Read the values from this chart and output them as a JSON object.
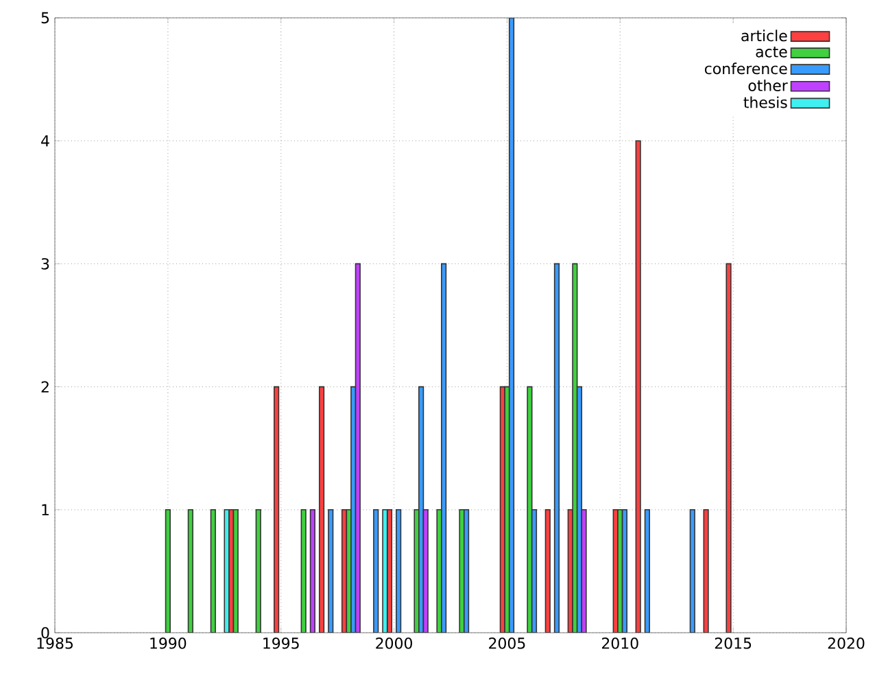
{
  "chart_data": {
    "type": "bar",
    "series": [
      {
        "name": "article",
        "color": "#ff4040",
        "x": [
          1993,
          1995,
          1997,
          1998,
          2000,
          2005,
          2007,
          2008,
          2010,
          2011,
          2014,
          2015
        ],
        "values": [
          1,
          2,
          2,
          1,
          1,
          2,
          1,
          1,
          1,
          4,
          1,
          3
        ]
      },
      {
        "name": "acte",
        "color": "#40d040",
        "x": [
          1990,
          1991,
          1992,
          1993,
          1994,
          1996,
          1998,
          2001,
          2002,
          2003,
          2005,
          2006,
          2008,
          2010
        ],
        "values": [
          1,
          1,
          1,
          1,
          1,
          1,
          1,
          1,
          1,
          1,
          2,
          2,
          3,
          1
        ]
      },
      {
        "name": "conference",
        "color": "#3a9bff",
        "x": [
          1997,
          1998,
          1999,
          2000,
          2001,
          2002,
          2003,
          2005,
          2006,
          2007,
          2008,
          2010,
          2011,
          2013
        ],
        "values": [
          1,
          2,
          1,
          1,
          2,
          3,
          1,
          5,
          1,
          3,
          2,
          1,
          1,
          1
        ]
      },
      {
        "name": "other",
        "color": "#c040ff",
        "x": [
          1996,
          1998,
          2001,
          2008
        ],
        "values": [
          1,
          3,
          1,
          1
        ]
      },
      {
        "name": "thesis",
        "color": "#40f0f0",
        "x": [
          1993,
          2000
        ],
        "values": [
          1,
          1
        ]
      }
    ],
    "xlim": [
      1985,
      2020
    ],
    "ylim": [
      0,
      5
    ],
    "xticks": [
      1985,
      1990,
      1995,
      2000,
      2005,
      2010,
      2015,
      2020
    ],
    "yticks": [
      0,
      1,
      2,
      3,
      4,
      5
    ],
    "grid": true,
    "legend": "top right"
  }
}
